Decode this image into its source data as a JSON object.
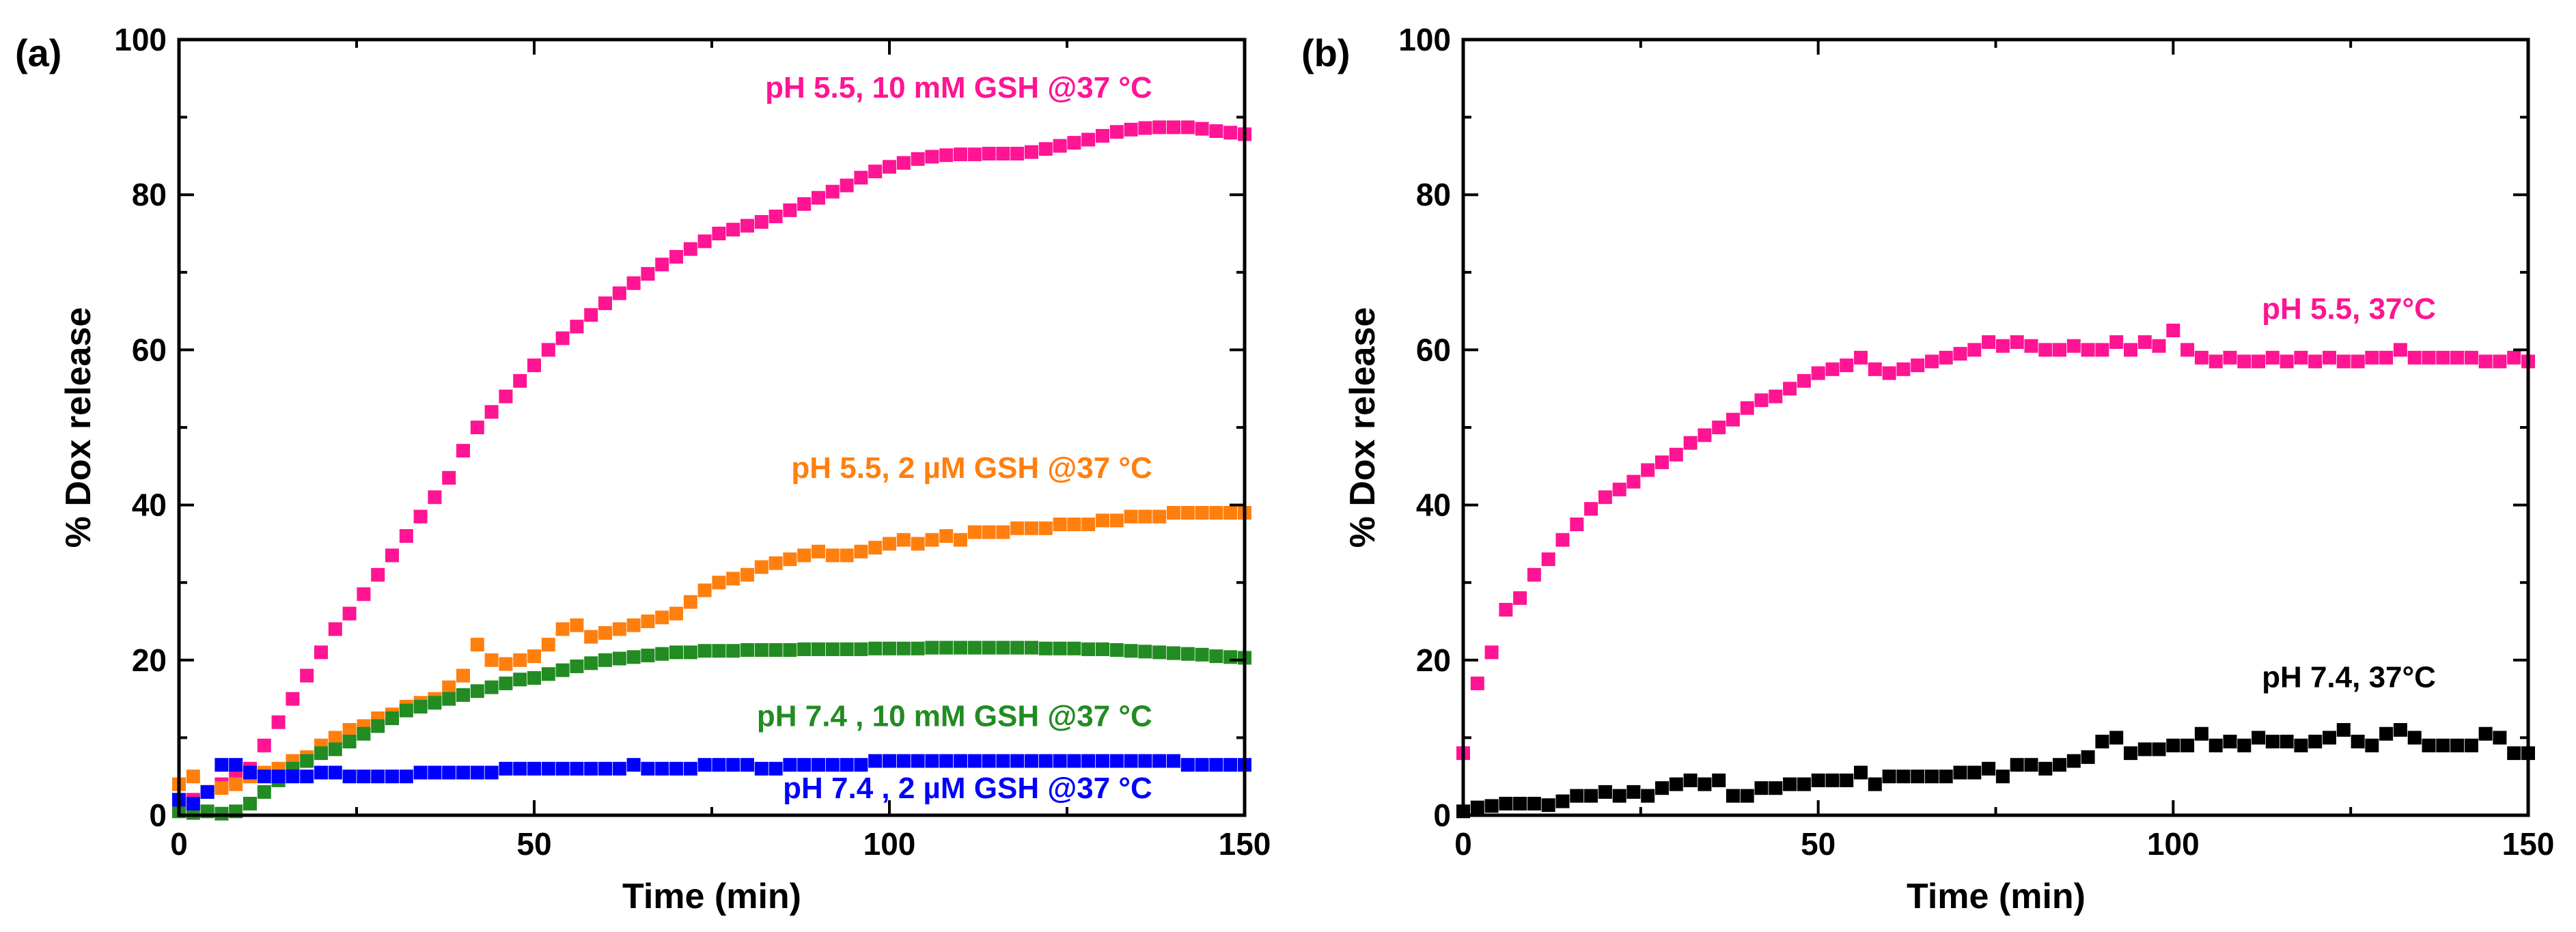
{
  "chart_data": [
    {
      "panel_label": "(a)",
      "type": "scatter",
      "xlabel": "Time (min)",
      "ylabel": "% Dox release",
      "xlim": [
        0,
        150
      ],
      "ylim": [
        0,
        100
      ],
      "xticks": [
        0,
        50,
        100,
        150
      ],
      "yticks": [
        0,
        20,
        40,
        60,
        80,
        100
      ],
      "xtick_labels": [
        "0",
        "50",
        "100",
        "150"
      ],
      "ytick_labels": [
        "0",
        "20",
        "40",
        "60",
        "80",
        "100"
      ],
      "grid": false,
      "series": [
        {
          "name": "pH 5.5, 10 mM GSH @37 °C",
          "color": "#ff1493",
          "x": [
            0,
            2,
            4,
            6,
            8,
            10,
            12,
            14,
            16,
            18,
            20,
            22,
            24,
            26,
            28,
            30,
            32,
            34,
            36,
            38,
            40,
            42,
            44,
            46,
            48,
            50,
            52,
            54,
            56,
            58,
            60,
            62,
            64,
            66,
            68,
            70,
            72,
            74,
            76,
            78,
            80,
            82,
            84,
            86,
            88,
            90,
            92,
            94,
            96,
            98,
            100,
            102,
            104,
            106,
            108,
            110,
            112,
            114,
            116,
            118,
            120,
            122,
            124,
            126,
            128,
            130,
            132,
            134,
            136,
            138,
            140,
            142,
            144,
            146,
            148,
            150
          ],
          "values": [
            1,
            2,
            3,
            4,
            5,
            6,
            9,
            12,
            15,
            18,
            21,
            24,
            26,
            28.5,
            31,
            33.5,
            36,
            38.5,
            41,
            43.5,
            47,
            50,
            52,
            54,
            56,
            58,
            60,
            61.5,
            63,
            64.5,
            66,
            67.3,
            68.6,
            69.8,
            71,
            72,
            73,
            74,
            75,
            75.5,
            76,
            76.5,
            77.2,
            78,
            78.8,
            79.6,
            80.4,
            81.2,
            82.2,
            83,
            83.6,
            84.1,
            84.6,
            84.9,
            85.1,
            85.2,
            85.2,
            85.3,
            85.3,
            85.3,
            85.5,
            85.9,
            86.3,
            86.7,
            87.1,
            87.6,
            88.1,
            88.4,
            88.6,
            88.7,
            88.7,
            88.7,
            88.5,
            88.2,
            88,
            87.8
          ]
        },
        {
          "name": "pH 5.5, 2 µM GSH @37 °C",
          "color": "#ff7f0e",
          "x": [
            0,
            2,
            4,
            6,
            8,
            10,
            12,
            14,
            16,
            18,
            20,
            22,
            24,
            26,
            28,
            30,
            32,
            34,
            36,
            38,
            40,
            42,
            44,
            46,
            48,
            50,
            52,
            54,
            56,
            58,
            60,
            62,
            64,
            66,
            68,
            70,
            72,
            74,
            76,
            78,
            80,
            82,
            84,
            86,
            88,
            90,
            92,
            94,
            96,
            98,
            100,
            102,
            104,
            106,
            108,
            110,
            112,
            114,
            116,
            118,
            120,
            122,
            124,
            126,
            128,
            130,
            132,
            134,
            136,
            138,
            140,
            142,
            144,
            146,
            148,
            150
          ],
          "values": [
            4,
            5,
            3,
            3.5,
            4,
            5,
            5.5,
            6,
            7,
            7.5,
            9,
            10,
            11,
            11.5,
            12.5,
            13,
            14,
            14.5,
            15,
            16.5,
            18,
            22,
            20,
            19.5,
            20,
            20.5,
            22,
            24,
            24.5,
            23,
            23.5,
            24,
            24.5,
            25,
            25.5,
            26,
            27.5,
            29,
            30,
            30.5,
            31,
            32,
            32.5,
            33,
            33.5,
            34,
            33.5,
            33.5,
            34,
            34.5,
            35,
            35.5,
            35,
            35.5,
            36,
            35.5,
            36.5,
            36.5,
            36.5,
            37,
            37,
            37,
            37.5,
            37.5,
            37.5,
            38,
            38,
            38.5,
            38.5,
            38.5,
            39,
            39,
            39,
            39,
            39,
            39
          ]
        },
        {
          "name": "pH 7.4 , 10 mM GSH @37 °C",
          "color": "#228b22",
          "x": [
            0,
            2,
            4,
            6,
            8,
            10,
            12,
            14,
            16,
            18,
            20,
            22,
            24,
            26,
            28,
            30,
            32,
            34,
            36,
            38,
            40,
            42,
            44,
            46,
            48,
            50,
            52,
            54,
            56,
            58,
            60,
            62,
            64,
            66,
            68,
            70,
            72,
            74,
            76,
            78,
            80,
            82,
            84,
            86,
            88,
            90,
            92,
            94,
            96,
            98,
            100,
            102,
            104,
            106,
            108,
            110,
            112,
            114,
            116,
            118,
            120,
            122,
            124,
            126,
            128,
            130,
            132,
            134,
            136,
            138,
            140,
            142,
            144,
            146,
            148,
            150
          ],
          "values": [
            0.5,
            0.3,
            0.5,
            0.2,
            0.5,
            1.5,
            3,
            4.5,
            6,
            7,
            8,
            8.5,
            9.5,
            10.5,
            11.5,
            12.5,
            13.5,
            14,
            14.5,
            15,
            15.5,
            16,
            16.5,
            17,
            17.5,
            17.7,
            18.2,
            18.7,
            19.2,
            19.6,
            20,
            20.2,
            20.4,
            20.6,
            20.8,
            21,
            21,
            21.2,
            21.2,
            21.2,
            21.3,
            21.3,
            21.3,
            21.3,
            21.4,
            21.4,
            21.4,
            21.4,
            21.4,
            21.5,
            21.5,
            21.5,
            21.5,
            21.6,
            21.6,
            21.6,
            21.6,
            21.6,
            21.6,
            21.6,
            21.6,
            21.5,
            21.5,
            21.5,
            21.4,
            21.4,
            21.3,
            21.2,
            21.1,
            21,
            20.9,
            20.8,
            20.7,
            20.5,
            20.4,
            20.3
          ]
        },
        {
          "name": "pH 7.4 , 2 µM GSH @37 °C",
          "color": "#0000ff",
          "x": [
            0,
            2,
            4,
            6,
            8,
            10,
            12,
            14,
            16,
            18,
            20,
            22,
            24,
            26,
            28,
            30,
            32,
            34,
            36,
            38,
            40,
            42,
            44,
            46,
            48,
            50,
            52,
            54,
            56,
            58,
            60,
            62,
            64,
            66,
            68,
            70,
            72,
            74,
            76,
            78,
            80,
            82,
            84,
            86,
            88,
            90,
            92,
            94,
            96,
            98,
            100,
            102,
            104,
            106,
            108,
            110,
            112,
            114,
            116,
            118,
            120,
            122,
            124,
            126,
            128,
            130,
            132,
            134,
            136,
            138,
            140,
            142,
            144,
            146,
            148,
            150
          ],
          "values": [
            2,
            1.5,
            3,
            6.5,
            6.5,
            5.5,
            5,
            5,
            5,
            5,
            5.5,
            5.5,
            5,
            5,
            5,
            5,
            5,
            5.5,
            5.5,
            5.5,
            5.5,
            5.5,
            5.5,
            6,
            6,
            6,
            6,
            6,
            6,
            6,
            6,
            6,
            6.5,
            6,
            6,
            6,
            6,
            6.5,
            6.5,
            6.5,
            6.5,
            6,
            6,
            6.5,
            6.5,
            6.5,
            6.5,
            6.5,
            6.5,
            7,
            7,
            7,
            7,
            7,
            7,
            7,
            7,
            7,
            7,
            7,
            7,
            7,
            7,
            7,
            7,
            7,
            7,
            7,
            7,
            7,
            7,
            6.5,
            6.5,
            6.5,
            6.5,
            6.5
          ]
        }
      ],
      "annotations": [
        {
          "text": "pH 5.5, 10 mM GSH @37 °C",
          "color": "#ff1493",
          "x": 137,
          "y": 92.5
        },
        {
          "text": "pH 5.5, 2 µM GSH @37 °C",
          "color": "#ff7f0e",
          "x": 137,
          "y": 43.5
        },
        {
          "text": "pH 7.4 , 10 mM GSH @37 °C",
          "color": "#228b22",
          "x": 137,
          "y": 11.5
        },
        {
          "text": "pH 7.4 , 2 µM GSH @37 °C",
          "color": "#0000ff",
          "x": 137,
          "y": 2.2
        }
      ]
    },
    {
      "panel_label": "(b)",
      "type": "scatter",
      "xlabel": "Time (min)",
      "ylabel": "% Dox release",
      "xlim": [
        0,
        150
      ],
      "ylim": [
        0,
        100
      ],
      "xticks": [
        0,
        50,
        100,
        150
      ],
      "yticks": [
        0,
        20,
        40,
        60,
        80,
        100
      ],
      "xtick_labels": [
        "0",
        "50",
        "100",
        "150"
      ],
      "ytick_labels": [
        "0",
        "20",
        "40",
        "60",
        "80",
        "100"
      ],
      "grid": false,
      "series": [
        {
          "name": "pH 5.5, 37°C",
          "color": "#ff1493",
          "x": [
            0,
            2,
            4,
            6,
            8,
            10,
            12,
            14,
            16,
            18,
            20,
            22,
            24,
            26,
            28,
            30,
            32,
            34,
            36,
            38,
            40,
            42,
            44,
            46,
            48,
            50,
            52,
            54,
            56,
            58,
            60,
            62,
            64,
            66,
            68,
            70,
            72,
            74,
            76,
            78,
            80,
            82,
            84,
            86,
            88,
            90,
            92,
            94,
            96,
            98,
            100,
            102,
            104,
            106,
            108,
            110,
            112,
            114,
            116,
            118,
            120,
            122,
            124,
            126,
            128,
            130,
            132,
            134,
            136,
            138,
            140,
            142,
            144,
            146,
            148,
            150
          ],
          "values": [
            8,
            17,
            21,
            26.5,
            28,
            31,
            33,
            35.5,
            37.5,
            39.5,
            41,
            42,
            43,
            44.5,
            45.5,
            46.5,
            48,
            49,
            50,
            51,
            52.5,
            53.5,
            54,
            55,
            56,
            57,
            57.5,
            58,
            59,
            57.5,
            57,
            57.5,
            58,
            58.5,
            59,
            59.5,
            60,
            61,
            60.5,
            61,
            60.5,
            60,
            60,
            60.5,
            60,
            60,
            61,
            60,
            61,
            60.5,
            62.5,
            60,
            59,
            58.5,
            59,
            58.5,
            58.5,
            59,
            58.5,
            59,
            58.5,
            59,
            58.5,
            58.5,
            59,
            59,
            60,
            59,
            59,
            59,
            59,
            59,
            58.5,
            58.5,
            59,
            58.5
          ]
        },
        {
          "name": "pH 7.4, 37°C",
          "color": "#000000",
          "x": [
            0,
            2,
            4,
            6,
            8,
            10,
            12,
            14,
            16,
            18,
            20,
            22,
            24,
            26,
            28,
            30,
            32,
            34,
            36,
            38,
            40,
            42,
            44,
            46,
            48,
            50,
            52,
            54,
            56,
            58,
            60,
            62,
            64,
            66,
            68,
            70,
            72,
            74,
            76,
            78,
            80,
            82,
            84,
            86,
            88,
            90,
            92,
            94,
            96,
            98,
            100,
            102,
            104,
            106,
            108,
            110,
            112,
            114,
            116,
            118,
            120,
            122,
            124,
            126,
            128,
            130,
            132,
            134,
            136,
            138,
            140,
            142,
            144,
            146,
            148,
            150
          ],
          "values": [
            0.5,
            1,
            1.2,
            1.5,
            1.5,
            1.5,
            1.3,
            1.8,
            2.5,
            2.5,
            3,
            2.5,
            3,
            2.5,
            3.5,
            4,
            4.5,
            4,
            4.5,
            2.5,
            2.5,
            3.5,
            3.5,
            4,
            4,
            4.5,
            4.5,
            4.5,
            5.5,
            4,
            5,
            5,
            5,
            5,
            5,
            5.5,
            5.5,
            6,
            5,
            6.5,
            6.5,
            6,
            6.5,
            7,
            7.5,
            9.5,
            10,
            8,
            8.5,
            8.5,
            9,
            9,
            10.5,
            9,
            9.5,
            9,
            10,
            9.5,
            9.5,
            9,
            9.5,
            10,
            11,
            9.5,
            9,
            10.5,
            11,
            10,
            9,
            9,
            9,
            9,
            10.5,
            10,
            8,
            8
          ]
        }
      ],
      "annotations": [
        {
          "text": "pH 5.5, 37°C",
          "color": "#ff1493",
          "x": 137,
          "y": 64
        },
        {
          "text": "pH 7.4, 37°C",
          "color": "#000000",
          "x": 137,
          "y": 16.5
        }
      ]
    }
  ]
}
